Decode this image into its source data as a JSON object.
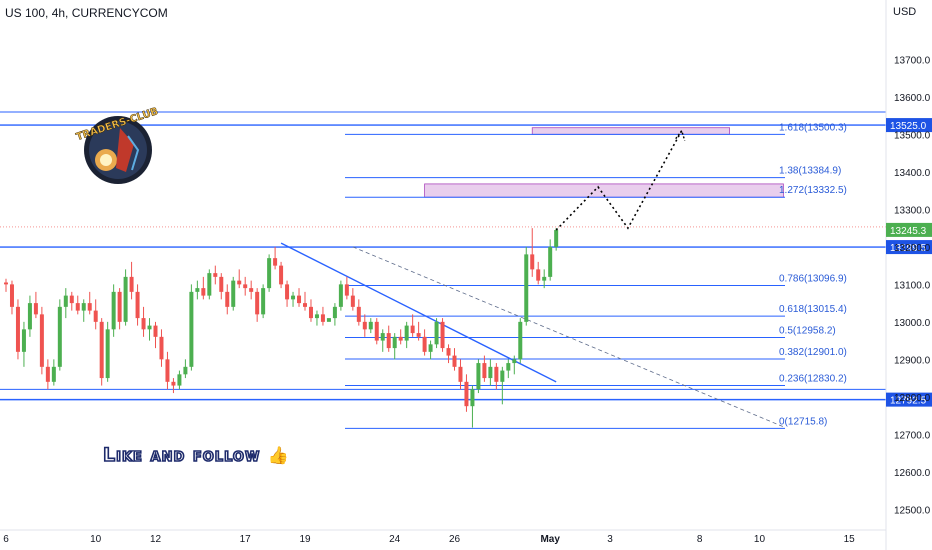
{
  "header": {
    "title": "US 100, 4h, CURRENCYCOM",
    "currency": "USD"
  },
  "overlay": {
    "like_text": "Like and follow",
    "thumb_icon": "thumbs-up-icon"
  },
  "logo": {
    "text": "TRADERS-CLUB"
  },
  "colors": {
    "up": "#26a69a",
    "upGreen": "#4caf50",
    "down": "#ef5350",
    "fib": "#2962ff",
    "zone": "#e1bee7",
    "zoneBorder": "#ab47bc",
    "last": "#4caf50"
  },
  "chart_data": {
    "type": "candlestick",
    "title": "US 100, 4h, CURRENCYCOM",
    "xlabel": "",
    "ylabel": "USD",
    "ylim": [
      12450,
      13800
    ],
    "y_ticks": [
      12500,
      12600,
      12700,
      12800,
      12900,
      13000,
      13100,
      13200,
      13300,
      13400,
      13500,
      13600,
      13700
    ],
    "y_tick_labels": [
      "12500.0",
      "12600.0",
      "12700.0",
      "12800.0",
      "12900.0",
      "13000.0",
      "13100.0",
      "13200.0",
      "13300.0",
      "13400.0",
      "13500.0",
      "13600.0",
      "13700.0"
    ],
    "x_ticks": [
      {
        "label": "6",
        "bar": 0
      },
      {
        "label": "10",
        "bar": 15
      },
      {
        "label": "12",
        "bar": 25
      },
      {
        "label": "17",
        "bar": 40
      },
      {
        "label": "19",
        "bar": 50
      },
      {
        "label": "24",
        "bar": 65
      },
      {
        "label": "26",
        "bar": 75
      },
      {
        "label": "May",
        "bar": 91
      },
      {
        "label": "3",
        "bar": 101
      },
      {
        "label": "8",
        "bar": 116
      },
      {
        "label": "10",
        "bar": 126
      },
      {
        "label": "15",
        "bar": 141
      }
    ],
    "candles": [
      [
        13105,
        13115,
        13080,
        13100
      ],
      [
        13100,
        13110,
        13020,
        13040
      ],
      [
        13040,
        13060,
        12900,
        12920
      ],
      [
        12920,
        13000,
        12880,
        12980
      ],
      [
        12980,
        13070,
        12960,
        13050
      ],
      [
        13050,
        13080,
        13010,
        13020
      ],
      [
        13020,
        13040,
        12860,
        12880
      ],
      [
        12880,
        12900,
        12820,
        12840
      ],
      [
        12840,
        12900,
        12830,
        12880
      ],
      [
        12880,
        13060,
        12870,
        13040
      ],
      [
        13040,
        13090,
        13010,
        13070
      ],
      [
        13070,
        13080,
        13030,
        13050
      ],
      [
        13050,
        13070,
        13020,
        13030
      ],
      [
        13030,
        13060,
        13000,
        13050
      ],
      [
        13050,
        13080,
        13020,
        13030
      ],
      [
        13030,
        13060,
        12980,
        13000
      ],
      [
        13000,
        13010,
        12830,
        12850
      ],
      [
        12850,
        13000,
        12840,
        12980
      ],
      [
        12980,
        13100,
        12960,
        13080
      ],
      [
        13080,
        13090,
        12980,
        13000
      ],
      [
        13000,
        13140,
        12990,
        13120
      ],
      [
        13120,
        13160,
        13060,
        13080
      ],
      [
        13080,
        13100,
        12990,
        13010
      ],
      [
        13010,
        13040,
        12960,
        12980
      ],
      [
        12980,
        13010,
        12950,
        12990
      ],
      [
        12990,
        13000,
        12930,
        12960
      ],
      [
        12960,
        12980,
        12880,
        12900
      ],
      [
        12900,
        12920,
        12820,
        12840
      ],
      [
        12840,
        12850,
        12810,
        12830
      ],
      [
        12830,
        12870,
        12820,
        12860
      ],
      [
        12860,
        12900,
        12850,
        12880
      ],
      [
        12880,
        13100,
        12870,
        13080
      ],
      [
        13080,
        13110,
        13060,
        13090
      ],
      [
        13090,
        13120,
        13060,
        13070
      ],
      [
        13070,
        13140,
        13060,
        13130
      ],
      [
        13130,
        13150,
        13100,
        13120
      ],
      [
        13120,
        13130,
        13060,
        13080
      ],
      [
        13080,
        13100,
        13020,
        13040
      ],
      [
        13040,
        13120,
        13030,
        13110
      ],
      [
        13110,
        13140,
        13090,
        13100
      ],
      [
        13100,
        13120,
        13070,
        13090
      ],
      [
        13090,
        13110,
        13060,
        13080
      ],
      [
        13080,
        13090,
        13000,
        13020
      ],
      [
        13020,
        13100,
        13010,
        13090
      ],
      [
        13090,
        13180,
        13080,
        13170
      ],
      [
        13170,
        13200,
        13140,
        13150
      ],
      [
        13150,
        13160,
        13090,
        13100
      ],
      [
        13100,
        13110,
        13040,
        13060
      ],
      [
        13060,
        13080,
        13040,
        13070
      ],
      [
        13070,
        13090,
        13040,
        13050
      ],
      [
        13050,
        13080,
        13030,
        13040
      ],
      [
        13040,
        13060,
        13000,
        13010
      ],
      [
        13010,
        13030,
        12990,
        13020
      ],
      [
        13020,
        13040,
        12990,
        13000
      ],
      [
        13000,
        13010,
        13010,
        13010
      ],
      [
        13010,
        13050,
        12990,
        13040
      ],
      [
        13040,
        13110,
        13030,
        13100
      ],
      [
        13100,
        13120,
        13060,
        13070
      ],
      [
        13070,
        13090,
        13030,
        13040
      ],
      [
        13040,
        13060,
        12990,
        13000
      ],
      [
        13000,
        13020,
        12960,
        12980
      ],
      [
        12980,
        13010,
        12970,
        13000
      ],
      [
        13000,
        13010,
        12940,
        12950
      ],
      [
        12950,
        12980,
        12920,
        12970
      ],
      [
        12970,
        12990,
        12920,
        12930
      ],
      [
        12930,
        12970,
        12900,
        12960
      ],
      [
        12960,
        12980,
        12940,
        12950
      ],
      [
        12950,
        13000,
        12930,
        12990
      ],
      [
        12990,
        13020,
        12960,
        12970
      ],
      [
        12970,
        13000,
        12950,
        12960
      ],
      [
        12960,
        12980,
        12910,
        12920
      ],
      [
        12920,
        12950,
        12900,
        12940
      ],
      [
        12940,
        13010,
        12930,
        13000
      ],
      [
        13000,
        13010,
        12920,
        12930
      ],
      [
        12930,
        12940,
        12890,
        12910
      ],
      [
        12910,
        12930,
        12870,
        12880
      ],
      [
        12880,
        12900,
        12820,
        12840
      ],
      [
        12840,
        12860,
        12760,
        12775
      ],
      [
        12775,
        12830,
        12718,
        12820
      ],
      [
        12820,
        12900,
        12810,
        12890
      ],
      [
        12890,
        12910,
        12840,
        12850
      ],
      [
        12850,
        12900,
        12830,
        12880
      ],
      [
        12880,
        12890,
        12820,
        12840
      ],
      [
        12840,
        12880,
        12780,
        12870
      ],
      [
        12870,
        12900,
        12850,
        12890
      ],
      [
        12890,
        12910,
        12860,
        12900
      ],
      [
        12900,
        13010,
        12890,
        13000
      ],
      [
        13000,
        13200,
        12990,
        13180
      ],
      [
        13180,
        13250,
        13120,
        13140
      ],
      [
        13140,
        13160,
        13100,
        13110
      ],
      [
        13110,
        13140,
        13090,
        13120
      ],
      [
        13120,
        13220,
        13110,
        13200
      ],
      [
        13200,
        13250,
        13190,
        13245
      ]
    ],
    "projection": [
      {
        "bar": 92,
        "price": 13245
      },
      {
        "bar": 99,
        "price": 13360
      },
      {
        "bar": 104,
        "price": 13250
      },
      {
        "bar": 113,
        "price": 13510
      }
    ],
    "horizontal_lines": [
      {
        "price": 13560,
        "label": ""
      },
      {
        "price": 13525,
        "label": "13525.0"
      },
      {
        "price": 13199.5,
        "label": "13199.5"
      },
      {
        "price": 12820,
        "label": ""
      },
      {
        "price": 12792.5,
        "label": "12792.5"
      }
    ],
    "last_price": {
      "price": 13245.3,
      "label": "13245.3"
    },
    "fib_levels": [
      {
        "price": 13500.3,
        "label": "1.618(13500.3)"
      },
      {
        "price": 13384.9,
        "label": "1.38(13384.9)"
      },
      {
        "price": 13332.5,
        "label": "1.272(13332.5)"
      },
      {
        "price": 13096.9,
        "label": "0.786(13096.9)"
      },
      {
        "price": 13015.4,
        "label": "0.618(13015.4)"
      },
      {
        "price": 12958.2,
        "label": "0.5(12958.2)"
      },
      {
        "price": 12901.0,
        "label": "0.382(12901.0)"
      },
      {
        "price": 12830.2,
        "label": "0.236(12830.2)"
      },
      {
        "price": 12715.8,
        "label": "0(12715.8)"
      }
    ],
    "zones": [
      {
        "from_bar": 88,
        "to_bar": 121,
        "low": 13500.3,
        "high": 13518
      },
      {
        "from_bar": 70,
        "to_bar": 130,
        "low": 13332.5,
        "high": 13368
      }
    ],
    "trendlines": [
      {
        "from": {
          "bar": 46,
          "price": 13210
        },
        "to": {
          "bar": 92,
          "price": 12840
        },
        "style": "solid"
      },
      {
        "from": {
          "bar": 58,
          "price": 13200
        },
        "to": {
          "bar": 130,
          "price": 12720
        },
        "style": "dashed"
      }
    ]
  }
}
